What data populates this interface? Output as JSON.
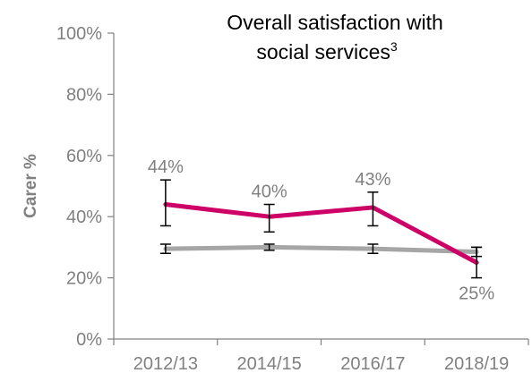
{
  "chart_data": {
    "type": "line",
    "title_line1": "Overall satisfaction with",
    "title_line2": "social services",
    "title_superscript": "3",
    "xlabel": "",
    "ylabel": "Carer %",
    "categories": [
      "2012/13",
      "2014/15",
      "2016/17",
      "2018/19"
    ],
    "ylim": [
      0,
      100
    ],
    "yticks": [
      0,
      20,
      40,
      60,
      80,
      100
    ],
    "ytick_labels": [
      "0%",
      "20%",
      "40%",
      "60%",
      "80%",
      "100%"
    ],
    "grid": false,
    "series": [
      {
        "color": "#cc0066",
        "values": [
          44,
          40,
          43,
          25
        ],
        "error_low": [
          37,
          35,
          37,
          20
        ],
        "error_high": [
          52,
          44,
          48,
          30
        ],
        "labels": [
          "44%",
          "40%",
          "43%",
          "25%"
        ]
      },
      {
        "color": "#a6a6a6",
        "values": [
          29.5,
          30,
          29.5,
          28.5
        ],
        "error_low": [
          28,
          29,
          28,
          27
        ],
        "error_high": [
          31,
          31,
          31,
          30
        ],
        "labels": []
      }
    ]
  }
}
